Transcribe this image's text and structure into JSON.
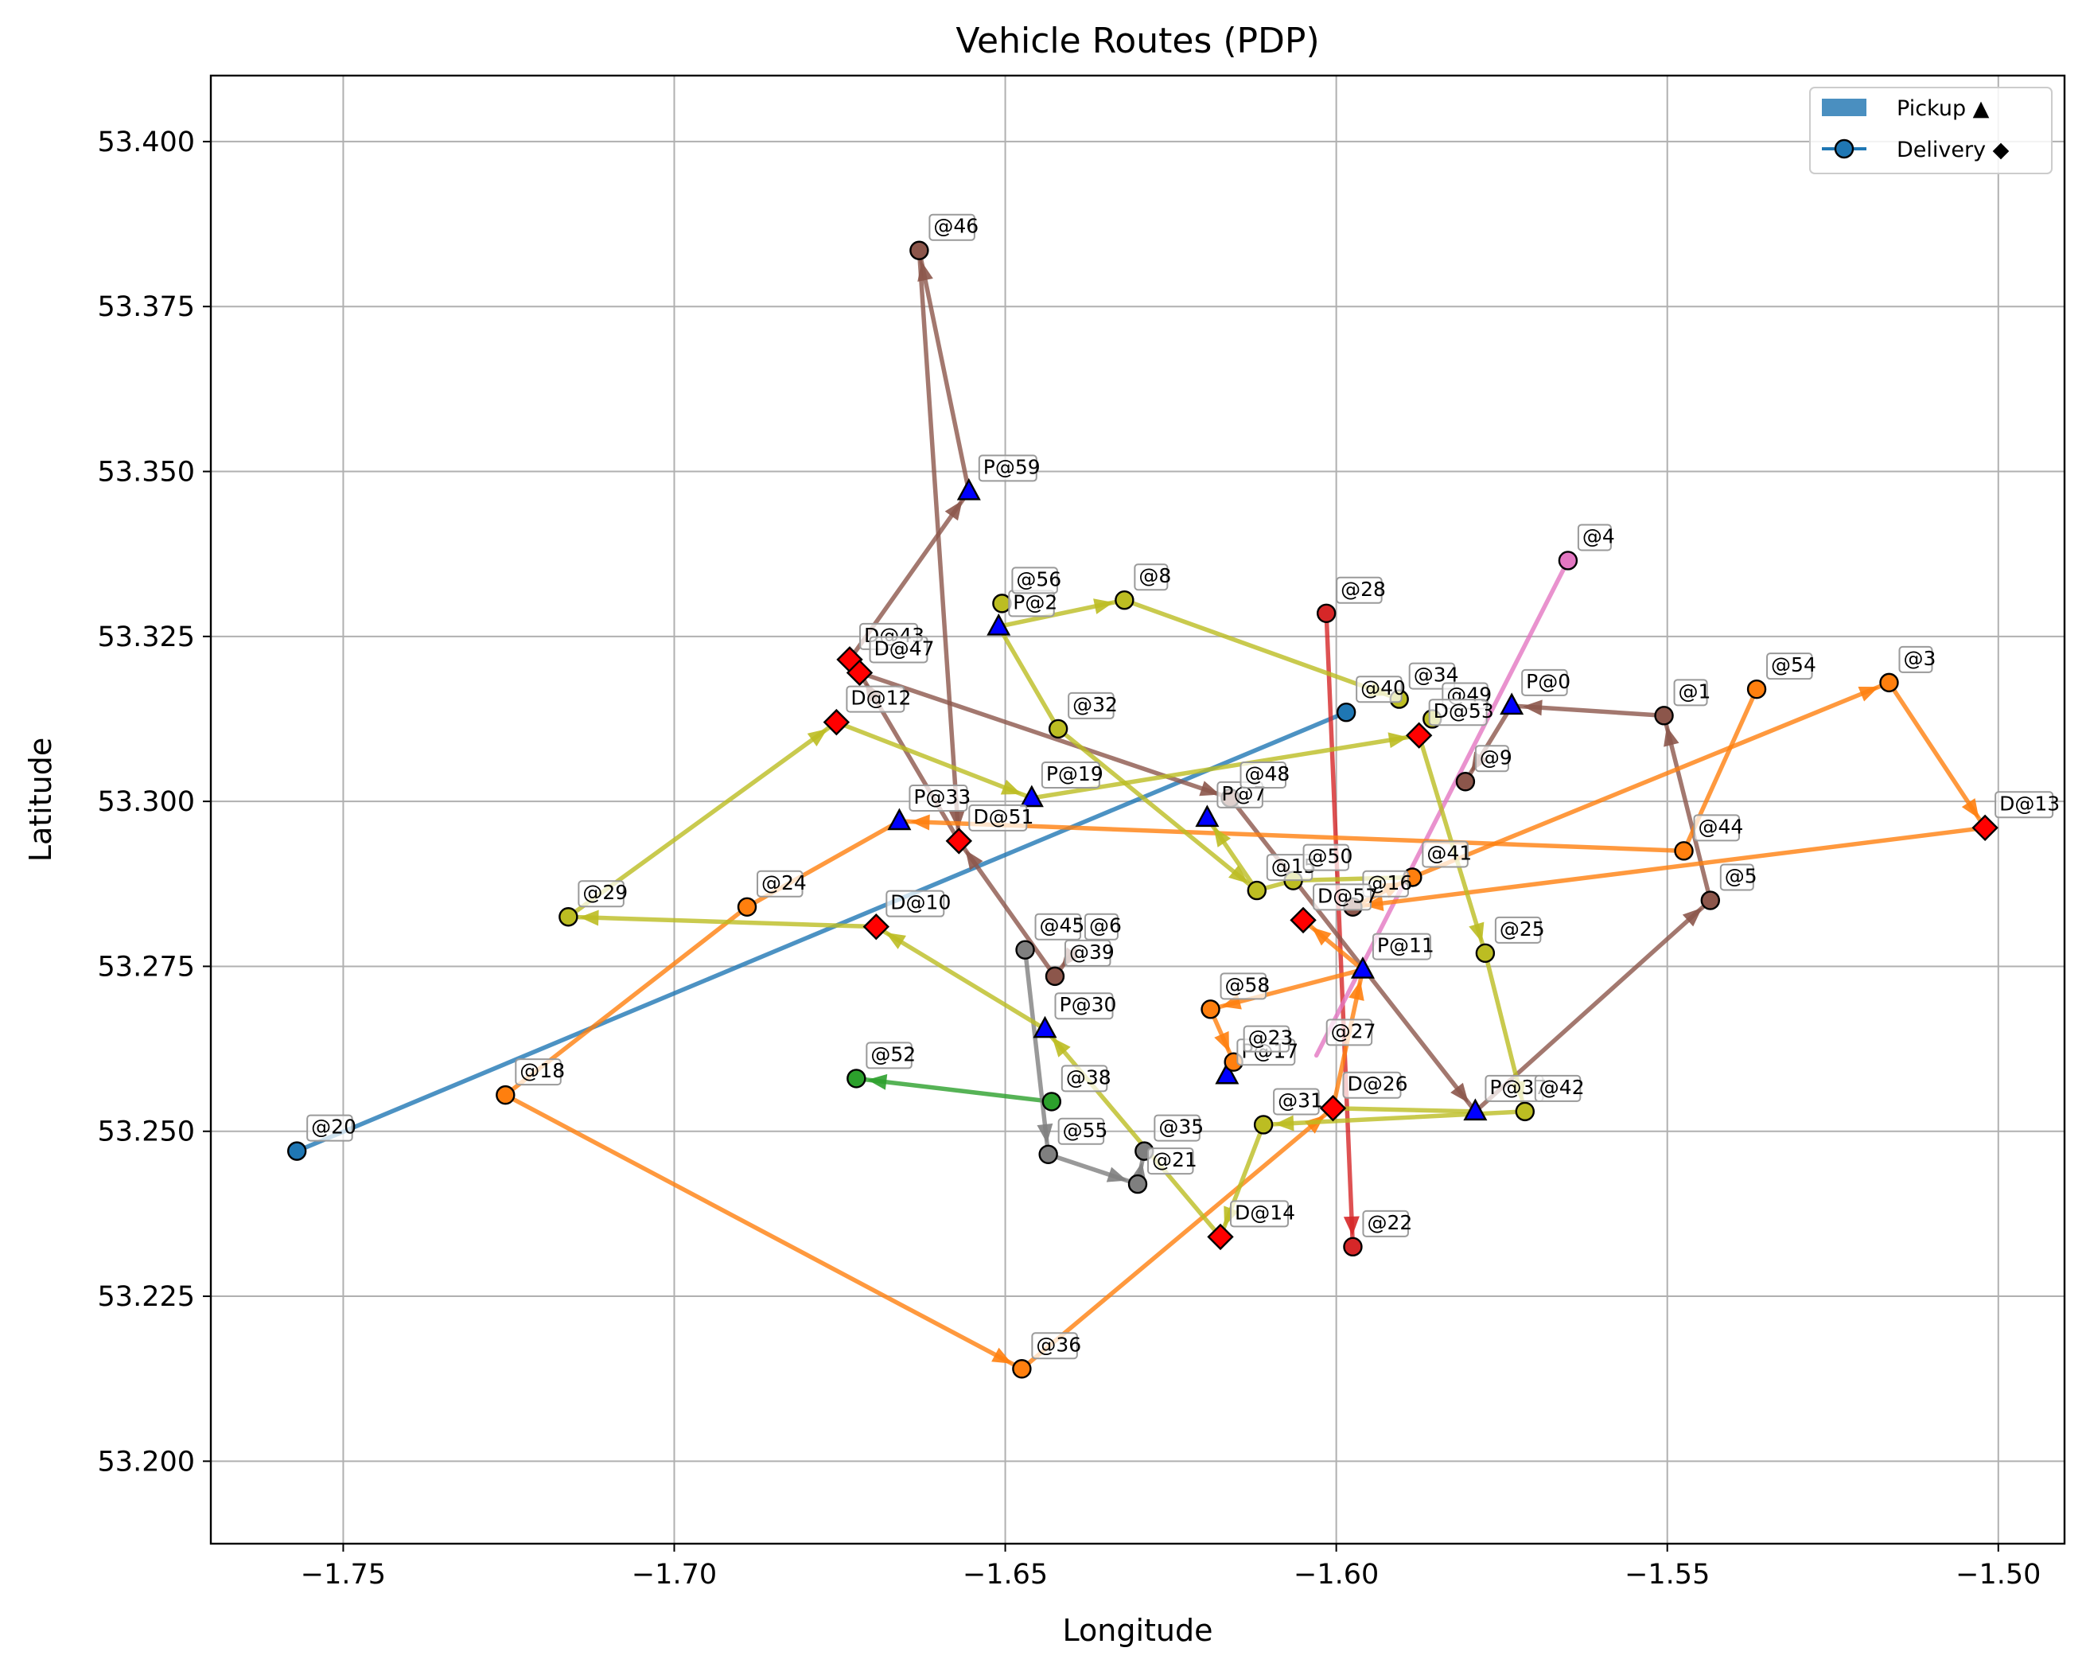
{
  "chart_data": {
    "type": "line",
    "title": "Vehicle Routes (PDP)",
    "xlabel": "Longitude",
    "ylabel": "Latitude",
    "xlim": [
      -1.77,
      -1.49
    ],
    "ylim": [
      53.1875,
      53.41
    ],
    "xticks": [
      -1.75,
      -1.7,
      -1.65,
      -1.6,
      -1.55,
      -1.5
    ],
    "xtick_labels": [
      "−1.75",
      "−1.70",
      "−1.65",
      "−1.60",
      "−1.55",
      "−1.50"
    ],
    "yticks": [
      53.2,
      53.225,
      53.25,
      53.275,
      53.3,
      53.325,
      53.35,
      53.375,
      53.4
    ],
    "ytick_labels": [
      "53.200",
      "53.225",
      "53.250",
      "53.275",
      "53.300",
      "53.325",
      "53.350",
      "53.375",
      "53.400"
    ],
    "grid": true,
    "legend_position": "top-right",
    "legend": [
      {
        "label": "Pickup ▲",
        "kind": "patch",
        "color": "#4a8fc0"
      },
      {
        "label": "Delivery ◆",
        "kind": "line-marker",
        "color": "#1f77b4"
      }
    ],
    "pickup_color": "#0000ff",
    "delivery_color": "#ff0000",
    "points": {
      "0": {
        "x": -1.5735,
        "y": 53.3145,
        "label": "P@0",
        "kind": "pickup"
      },
      "1": {
        "x": -1.5505,
        "y": 53.313,
        "label": "@1",
        "kind": "node",
        "color": "#8c564b"
      },
      "2": {
        "x": -1.651,
        "y": 53.3265,
        "label": "P@2",
        "kind": "pickup"
      },
      "3": {
        "x": -1.5165,
        "y": 53.318,
        "label": "@3",
        "kind": "node",
        "color": "#ff7f0e"
      },
      "4": {
        "x": -1.565,
        "y": 53.3365,
        "label": "@4",
        "kind": "node",
        "color": "#e377c2"
      },
      "5": {
        "x": -1.5435,
        "y": 53.285,
        "label": "@5",
        "kind": "node",
        "color": "#8c564b"
      },
      "6": {
        "x": -1.6395,
        "y": 53.2775,
        "label": "@6",
        "kind": "label-only"
      },
      "7": {
        "x": -1.6195,
        "y": 53.2975,
        "label": "P@7",
        "kind": "pickup"
      },
      "8": {
        "x": -1.632,
        "y": 53.3305,
        "label": "@8",
        "kind": "node",
        "color": "#bcbd22"
      },
      "9": {
        "x": -1.5805,
        "y": 53.303,
        "label": "@9",
        "kind": "node",
        "color": "#8c564b"
      },
      "10": {
        "x": -1.6695,
        "y": 53.281,
        "label": "D@10",
        "kind": "delivery"
      },
      "11": {
        "x": -1.596,
        "y": 53.2745,
        "label": "P@11",
        "kind": "pickup"
      },
      "12": {
        "x": -1.6755,
        "y": 53.312,
        "label": "D@12",
        "kind": "delivery"
      },
      "13": {
        "x": -1.502,
        "y": 53.296,
        "label": "D@13",
        "kind": "delivery"
      },
      "14": {
        "x": -1.6175,
        "y": 53.234,
        "label": "D@14",
        "kind": "delivery"
      },
      "15": {
        "x": -1.612,
        "y": 53.2865,
        "label": "@15",
        "kind": "node",
        "color": "#bcbd22"
      },
      "16": {
        "x": -1.5975,
        "y": 53.284,
        "label": "@16",
        "kind": "node",
        "color": "#8c564b"
      },
      "17": {
        "x": -1.6165,
        "y": 53.2585,
        "label": "P@17",
        "kind": "pickup"
      },
      "18": {
        "x": -1.7255,
        "y": 53.2555,
        "label": "@18",
        "kind": "node",
        "color": "#ff7f0e"
      },
      "19": {
        "x": -1.646,
        "y": 53.3005,
        "label": "P@19",
        "kind": "pickup"
      },
      "20": {
        "x": -1.757,
        "y": 53.247,
        "label": "@20",
        "kind": "node",
        "color": "#1f77b4"
      },
      "21": {
        "x": -1.63,
        "y": 53.242,
        "label": "@21",
        "kind": "node",
        "color": "#7f7f7f"
      },
      "22": {
        "x": -1.5975,
        "y": 53.2325,
        "label": "@22",
        "kind": "node",
        "color": "#d62728"
      },
      "23": {
        "x": -1.6155,
        "y": 53.2605,
        "label": "@23",
        "kind": "node",
        "color": "#ff7f0e"
      },
      "24": {
        "x": -1.689,
        "y": 53.284,
        "label": "@24",
        "kind": "node",
        "color": "#ff7f0e"
      },
      "25": {
        "x": -1.5775,
        "y": 53.277,
        "label": "@25",
        "kind": "node",
        "color": "#bcbd22"
      },
      "26": {
        "x": -1.6005,
        "y": 53.2535,
        "label": "D@26",
        "kind": "delivery"
      },
      "27": {
        "x": -1.603,
        "y": 53.2615,
        "label": "@27",
        "kind": "label-only"
      },
      "28": {
        "x": -1.6015,
        "y": 53.3285,
        "label": "@28",
        "kind": "node",
        "color": "#d62728"
      },
      "29": {
        "x": -1.716,
        "y": 53.2825,
        "label": "@29",
        "kind": "node",
        "color": "#bcbd22"
      },
      "30": {
        "x": -1.644,
        "y": 53.2655,
        "label": "P@30",
        "kind": "pickup"
      },
      "31": {
        "x": -1.611,
        "y": 53.251,
        "label": "@31",
        "kind": "node",
        "color": "#bcbd22"
      },
      "32": {
        "x": -1.642,
        "y": 53.311,
        "label": "@32",
        "kind": "node",
        "color": "#bcbd22"
      },
      "33": {
        "x": -1.666,
        "y": 53.297,
        "label": "P@33",
        "kind": "pickup"
      },
      "34": {
        "x": -1.5905,
        "y": 53.3155,
        "label": "@34",
        "kind": "node",
        "color": "#bcbd22"
      },
      "35": {
        "x": -1.629,
        "y": 53.247,
        "label": "@35",
        "kind": "node",
        "color": "#7f7f7f"
      },
      "36": {
        "x": -1.6475,
        "y": 53.214,
        "label": "@36",
        "kind": "node",
        "color": "#ff7f0e"
      },
      "37": {
        "x": -1.579,
        "y": 53.253,
        "label": "P@37",
        "kind": "pickup"
      },
      "38": {
        "x": -1.643,
        "y": 53.2545,
        "label": "@38",
        "kind": "node",
        "color": "#2ca02c"
      },
      "39": {
        "x": -1.6425,
        "y": 53.2735,
        "label": "@39",
        "kind": "node",
        "color": "#8c564b"
      },
      "40": {
        "x": -1.5985,
        "y": 53.3135,
        "label": "@40",
        "kind": "node",
        "color": "#1f77b4"
      },
      "41": {
        "x": -1.5885,
        "y": 53.2885,
        "label": "@41",
        "kind": "node",
        "color": "#ff7f0e"
      },
      "42": {
        "x": -1.5715,
        "y": 53.253,
        "label": "@42",
        "kind": "node",
        "color": "#bcbd22"
      },
      "43": {
        "x": -1.6735,
        "y": 53.3215,
        "label": "D@43",
        "kind": "delivery"
      },
      "44": {
        "x": -1.5475,
        "y": 53.2925,
        "label": "@44",
        "kind": "node",
        "color": "#ff7f0e"
      },
      "45": {
        "x": -1.647,
        "y": 53.2775,
        "label": "@45",
        "kind": "node",
        "color": "#7f7f7f"
      },
      "46": {
        "x": -1.663,
        "y": 53.3835,
        "label": "@46",
        "kind": "node",
        "color": "#8c564b"
      },
      "47": {
        "x": -1.672,
        "y": 53.3195,
        "label": "D@47",
        "kind": "delivery"
      },
      "48": {
        "x": -1.616,
        "y": 53.3005,
        "label": "@48",
        "kind": "node",
        "color": "#8c564b"
      },
      "49": {
        "x": -1.5855,
        "y": 53.3125,
        "label": "@49",
        "kind": "node",
        "color": "#bcbd22"
      },
      "50": {
        "x": -1.6065,
        "y": 53.288,
        "label": "@50",
        "kind": "node",
        "color": "#bcbd22"
      },
      "51": {
        "x": -1.657,
        "y": 53.294,
        "label": "D@51",
        "kind": "delivery"
      },
      "52": {
        "x": -1.6725,
        "y": 53.258,
        "label": "@52",
        "kind": "node",
        "color": "#2ca02c"
      },
      "53": {
        "x": -1.5875,
        "y": 53.31,
        "label": "D@53",
        "kind": "delivery"
      },
      "54": {
        "x": -1.5365,
        "y": 53.317,
        "label": "@54",
        "kind": "node",
        "color": "#ff7f0e"
      },
      "55": {
        "x": -1.6435,
        "y": 53.2465,
        "label": "@55",
        "kind": "node",
        "color": "#7f7f7f"
      },
      "56": {
        "x": -1.6505,
        "y": 53.33,
        "label": "@56",
        "kind": "node",
        "color": "#bcbd22"
      },
      "57": {
        "x": -1.605,
        "y": 53.282,
        "label": "D@57",
        "kind": "delivery"
      },
      "58": {
        "x": -1.619,
        "y": 53.2685,
        "label": "@58",
        "kind": "node",
        "color": "#ff7f0e"
      },
      "59": {
        "x": -1.6555,
        "y": 53.347,
        "label": "P@59",
        "kind": "pickup"
      }
    },
    "routes": [
      {
        "color": "#1f77b4",
        "nodes": [
          "20",
          "40"
        ],
        "arrows": false
      },
      {
        "color": "#d62728",
        "nodes": [
          "28",
          "22"
        ],
        "arrows": true
      },
      {
        "color": "#e377c2",
        "nodes": [
          "4",
          "27"
        ],
        "arrows": false
      },
      {
        "color": "#2ca02c",
        "nodes": [
          "38",
          "52"
        ],
        "arrows": true
      },
      {
        "color": "#7f7f7f",
        "nodes": [
          "45",
          "55",
          "21",
          "35"
        ],
        "arrows": true
      },
      {
        "color": "#8c564b",
        "nodes": [
          "6",
          "39",
          "51",
          "47",
          "48",
          "37",
          "5",
          "1",
          "0",
          "9"
        ],
        "arrows": true
      },
      {
        "color": "#8c564b",
        "nodes": [
          "43",
          "59",
          "46",
          "51"
        ],
        "arrows": true
      },
      {
        "color": "#ff7f0e",
        "nodes": [
          "18",
          "36",
          "26",
          "11",
          "58",
          "23"
        ],
        "arrows": true
      },
      {
        "color": "#ff7f0e",
        "nodes": [
          "18",
          "24",
          "33"
        ],
        "arrows": false
      },
      {
        "color": "#ff7f0e",
        "nodes": [
          "13",
          "16",
          "41",
          "3",
          "13"
        ],
        "arrows": true
      },
      {
        "color": "#ff7f0e",
        "nodes": [
          "44",
          "33"
        ],
        "arrows": true
      },
      {
        "color": "#ff7f0e",
        "nodes": [
          "44",
          "54"
        ],
        "arrows": false
      },
      {
        "color": "#ff7f0e",
        "nodes": [
          "17",
          "23"
        ],
        "arrows": true
      },
      {
        "color": "#ff7f0e",
        "nodes": [
          "11",
          "57"
        ],
        "arrows": true
      },
      {
        "color": "#bcbd22",
        "nodes": [
          "10",
          "29",
          "12",
          "19",
          "53",
          "25",
          "42",
          "31"
        ],
        "arrows": true
      },
      {
        "color": "#bcbd22",
        "nodes": [
          "31",
          "14",
          "30",
          "10"
        ],
        "arrows": true
      },
      {
        "color": "#bcbd22",
        "nodes": [
          "2",
          "8",
          "34"
        ],
        "arrows": true
      },
      {
        "color": "#bcbd22",
        "nodes": [
          "32",
          "15",
          "7"
        ],
        "arrows": true
      },
      {
        "color": "#bcbd22",
        "nodes": [
          "2",
          "32"
        ],
        "arrows": false
      },
      {
        "color": "#bcbd22",
        "nodes": [
          "15",
          "50",
          "41"
        ],
        "arrows": false
      },
      {
        "color": "#bcbd22",
        "nodes": [
          "26",
          "37"
        ],
        "arrows": false
      }
    ]
  }
}
